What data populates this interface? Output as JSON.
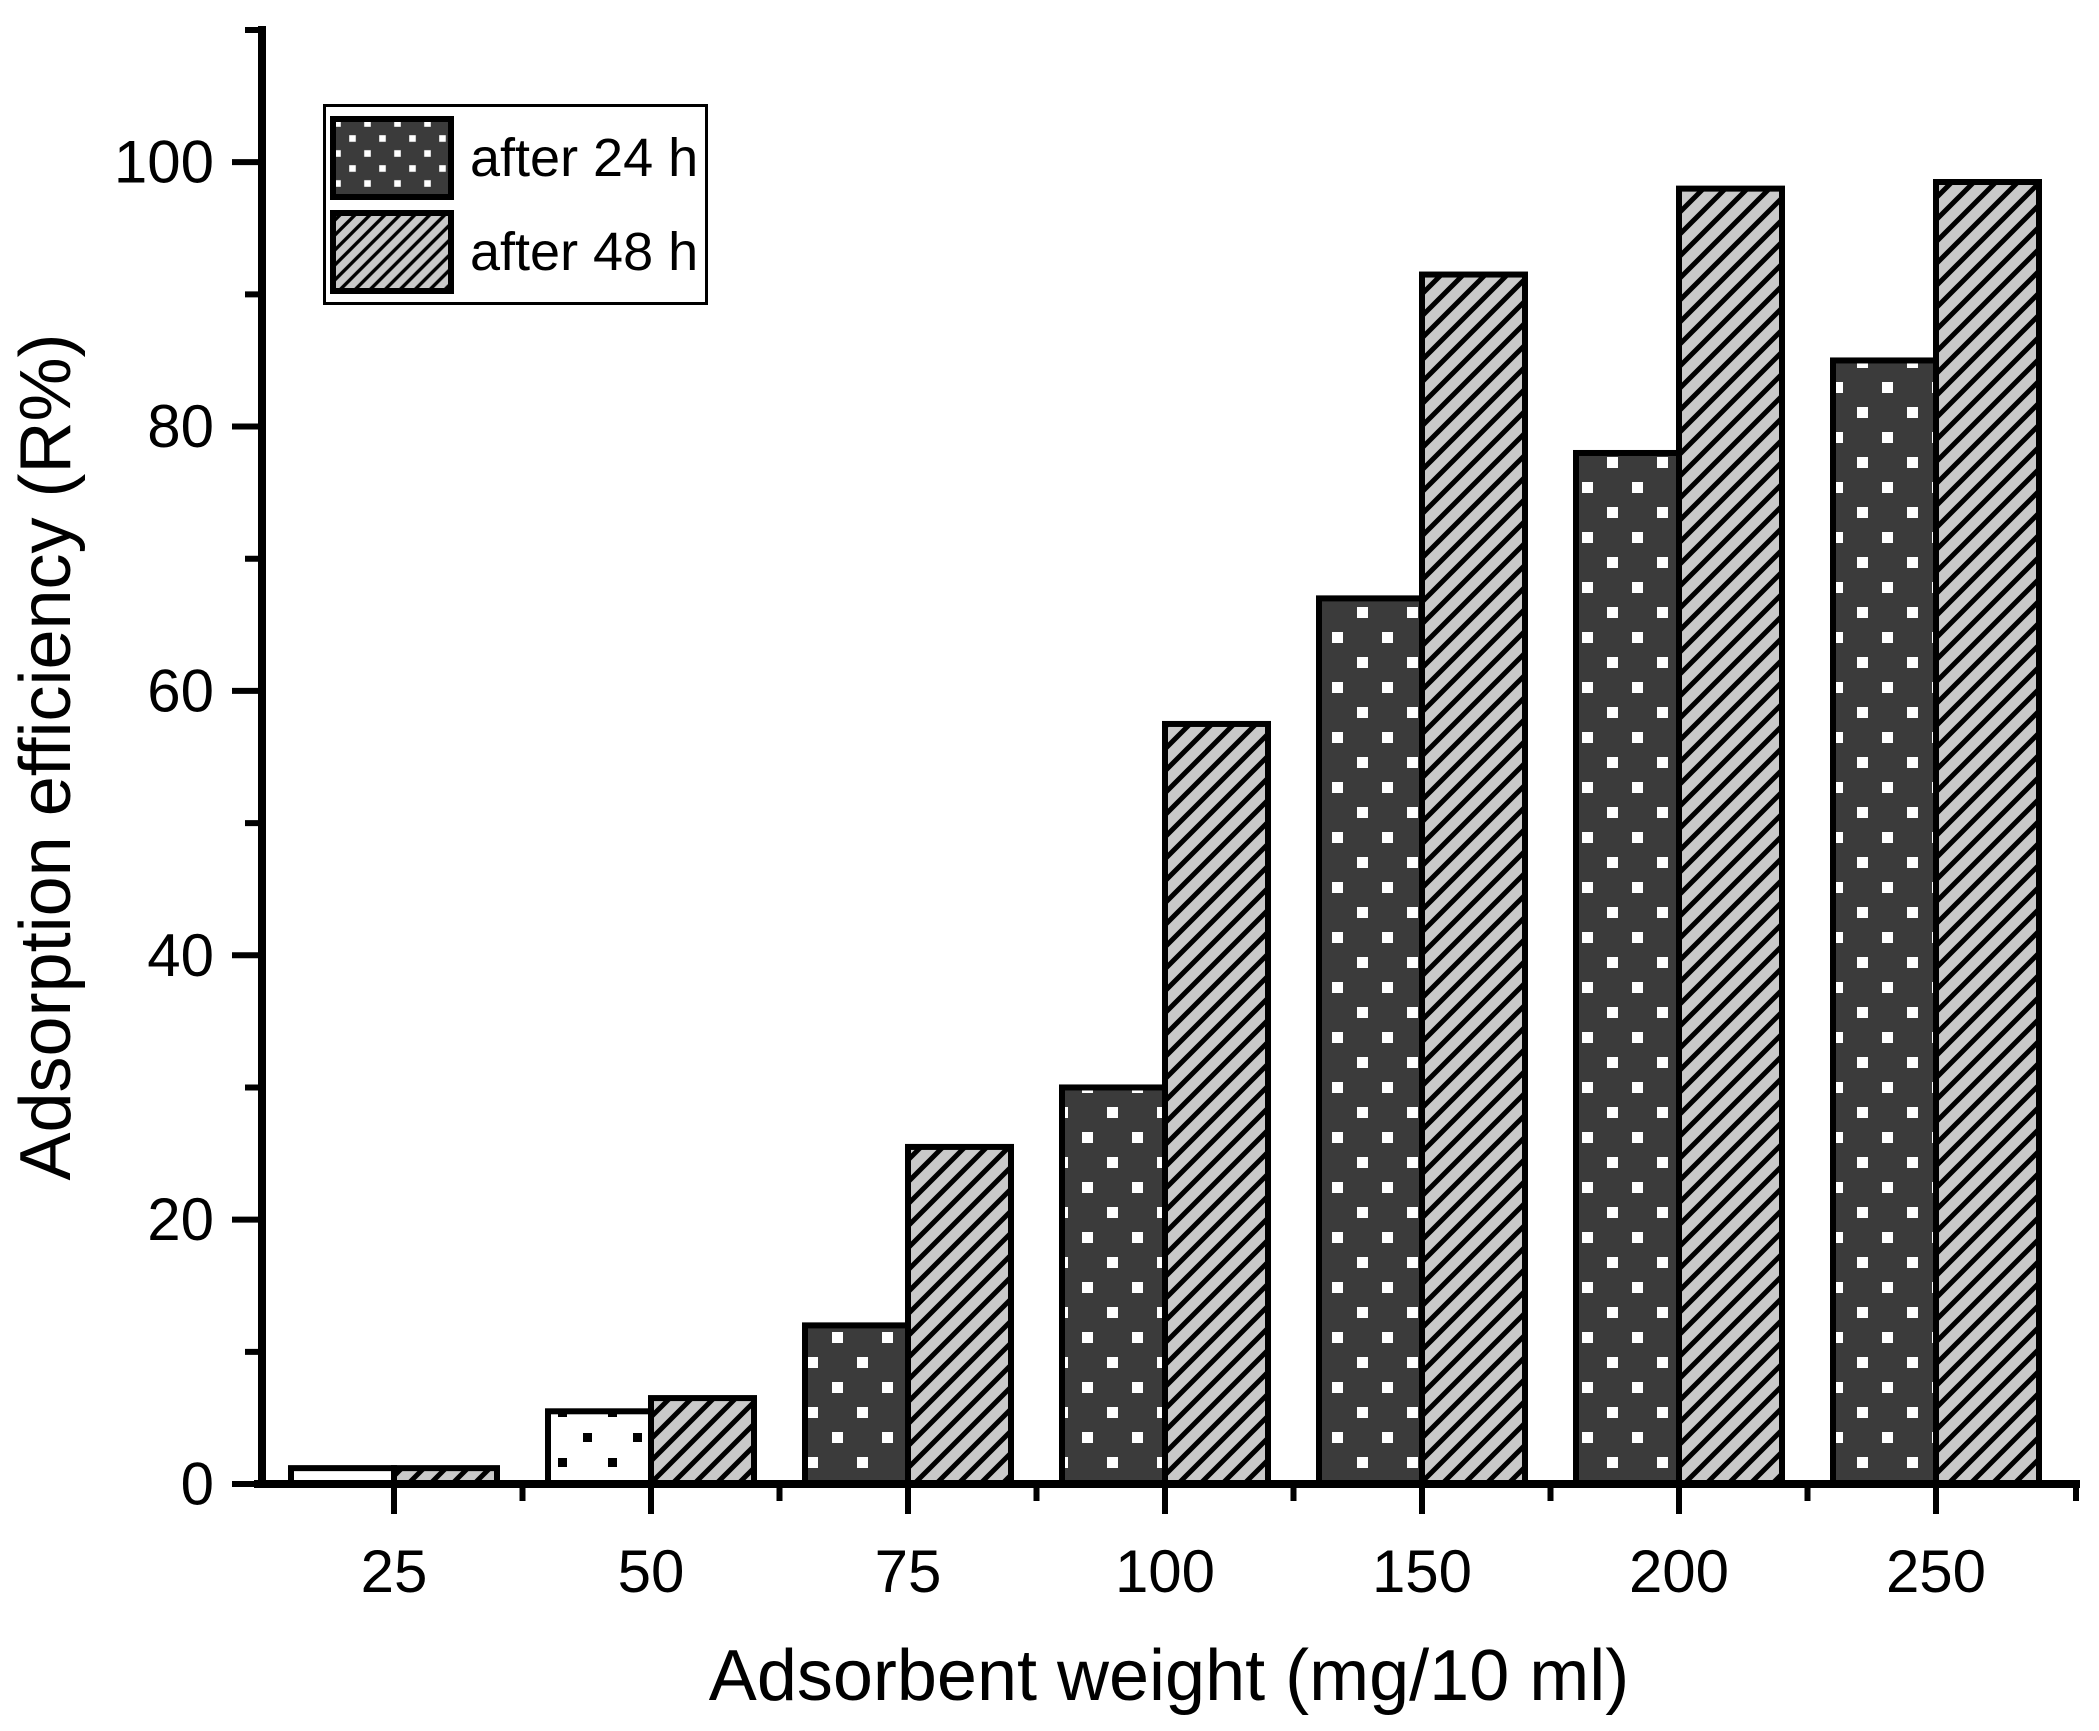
{
  "chart_data": {
    "type": "bar",
    "title": "",
    "xlabel": "Adsorbent weight (mg/10 ml)",
    "ylabel": "Adsorption efficiency (R%)",
    "categories": [
      "25",
      "50",
      "75",
      "100",
      "150",
      "200",
      "250"
    ],
    "series": [
      {
        "name": "after 24 h",
        "values": [
          1.2,
          5.5,
          12,
          30,
          67,
          78,
          85
        ],
        "pattern": "dots-dark",
        "bar_fills": [
          "dots-light",
          "dots-light",
          "dots-dark",
          "dots-dark",
          "dots-dark",
          "dots-dark",
          "dots-dark"
        ]
      },
      {
        "name": "after 48 h",
        "values": [
          1.2,
          6.5,
          25.5,
          57.5,
          91.5,
          98,
          98.5
        ],
        "pattern": "hatch",
        "bar_fills": [
          "hatch",
          "hatch",
          "hatch",
          "hatch",
          "hatch",
          "hatch",
          "hatch"
        ]
      }
    ],
    "ylim": [
      0,
      110
    ],
    "yticks": [
      0,
      20,
      40,
      60,
      80,
      100
    ],
    "yminorticks": [
      10,
      30,
      50,
      70,
      90,
      110
    ],
    "grid": false,
    "legend_position": "top-left"
  },
  "legend": {
    "items": [
      {
        "label": "after 24 h",
        "pattern": "dots-dark"
      },
      {
        "label": "after 48 h",
        "pattern": "hatch"
      }
    ]
  },
  "colors": {
    "background": "#ffffff",
    "axis": "#000000",
    "bar_border": "#000000",
    "bar_dark_fill": "#3b3b3b",
    "bar_dark_dot": "#ffffff",
    "bar_light_fill": "#ffffff",
    "bar_light_dot": "#000000",
    "hatch_fill": "#c9c9c9",
    "hatch_line": "#000000"
  }
}
